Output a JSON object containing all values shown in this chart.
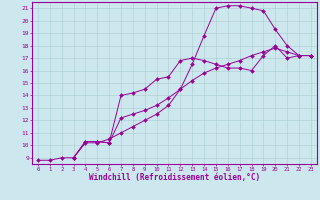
{
  "xlabel": "Windchill (Refroidissement éolien,°C)",
  "bg_color": "#cce8ee",
  "line_color": "#990099",
  "grid_color": "#aacccc",
  "xlim": [
    -0.5,
    23.5
  ],
  "ylim": [
    8.5,
    21.5
  ],
  "xticks": [
    0,
    1,
    2,
    3,
    4,
    5,
    6,
    7,
    8,
    9,
    10,
    11,
    12,
    13,
    14,
    15,
    16,
    17,
    18,
    19,
    20,
    21,
    22,
    23
  ],
  "yticks": [
    9,
    10,
    11,
    12,
    13,
    14,
    15,
    16,
    17,
    18,
    19,
    20,
    21
  ],
  "line1_x": [
    0,
    1,
    2,
    3,
    4,
    5,
    6,
    7,
    8,
    9,
    10,
    11,
    12,
    13,
    14,
    15,
    16,
    17,
    18,
    19,
    20,
    21,
    22,
    23
  ],
  "line1_y": [
    8.8,
    8.8,
    9.0,
    9.0,
    10.2,
    10.2,
    10.5,
    11.0,
    11.5,
    12.0,
    12.5,
    13.2,
    14.5,
    16.5,
    18.8,
    21.0,
    21.2,
    21.2,
    21.0,
    20.8,
    19.3,
    18.0,
    17.2,
    17.2
  ],
  "line2_x": [
    3,
    4,
    5,
    6,
    7,
    8,
    9,
    10,
    11,
    12,
    13,
    14,
    15,
    16,
    17,
    18,
    19,
    20,
    21,
    22,
    23
  ],
  "line2_y": [
    9.0,
    10.3,
    10.3,
    10.2,
    14.0,
    14.2,
    14.5,
    15.3,
    15.5,
    16.8,
    17.0,
    16.8,
    16.5,
    16.2,
    16.2,
    16.0,
    17.2,
    18.0,
    17.0,
    17.2,
    17.2
  ],
  "line3_x": [
    3,
    4,
    5,
    6,
    7,
    8,
    9,
    10,
    11,
    12,
    13,
    14,
    15,
    16,
    17,
    18,
    19,
    20,
    21,
    22,
    23
  ],
  "line3_y": [
    9.0,
    10.3,
    10.3,
    10.2,
    12.2,
    12.5,
    12.8,
    13.2,
    13.8,
    14.5,
    15.2,
    15.8,
    16.2,
    16.5,
    16.8,
    17.2,
    17.5,
    17.8,
    17.5,
    17.2,
    17.2
  ],
  "marker": "D",
  "markersize": 2.0,
  "linewidth": 0.7
}
